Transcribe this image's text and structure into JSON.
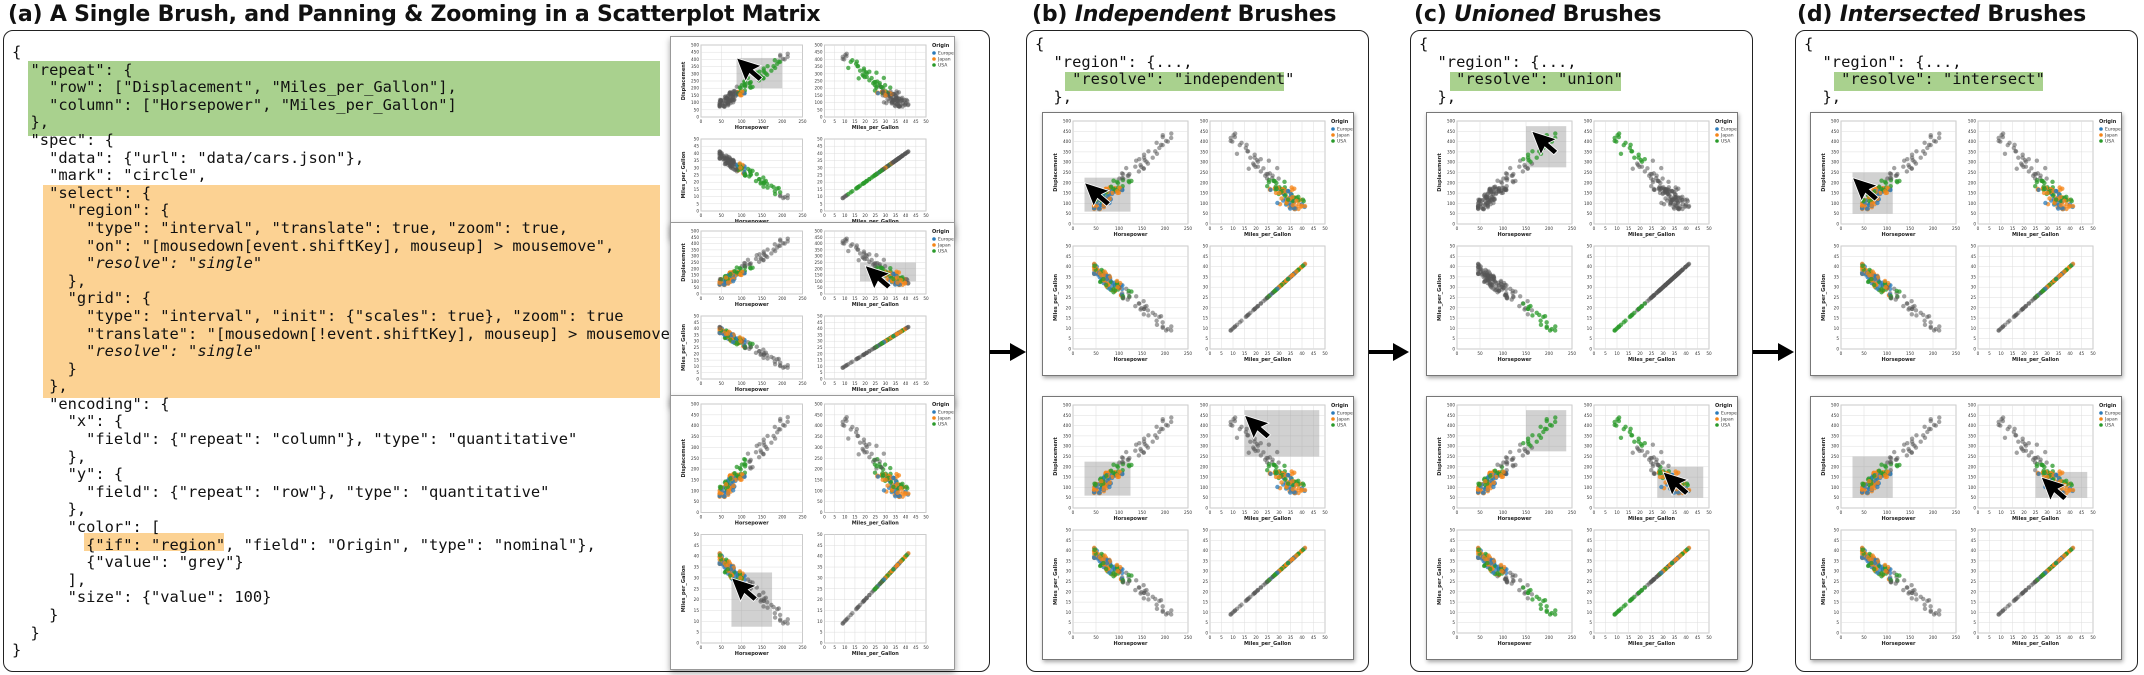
{
  "titles": {
    "a": "(a) A Single Brush, and Panning & Zooming in a Scatterplot Matrix",
    "b_prefix": "(b) ",
    "b_em": "Independent",
    "b_suffix": " Brushes",
    "c_prefix": "(c) ",
    "c_em": "Unioned",
    "c_suffix": " Brushes",
    "d_prefix": "(d) ",
    "d_em": "Intersected",
    "d_suffix": " Brushes"
  },
  "code_a": [
    "{",
    "  \"repeat\": {",
    "    \"row\": [\"Displacement\", \"Miles_per_Gallon\"],",
    "    \"column\": [\"Horsepower\", \"Miles_per_Gallon\"]",
    "  },",
    "  \"spec\": {",
    "    \"data\": {\"url\": \"data/cars.json\"},",
    "    \"mark\": \"circle\",",
    "    \"select\": {",
    "      \"region\": {",
    "        \"type\": \"interval\", \"translate\": true, \"zoom\": true,",
    "        \"on\": \"[mousedown[event.shiftKey], mouseup] > mousemove\",",
    "        \"resolve\": \"single\"",
    "      },",
    "      \"grid\": {",
    "        \"type\": \"interval\", \"init\": {\"scales\": true}, \"zoom\": true",
    "        \"translate\": \"[mousedown[!event.shiftKey], mouseup] > mousemove\",",
    "        \"resolve\": \"single\"",
    "      }",
    "    },",
    "    \"encoding\": {",
    "      \"x\": {",
    "        \"field\": {\"repeat\": \"column\"}, \"type\": \"quantitative\"",
    "      },",
    "      \"y\": {",
    "        \"field\": {\"repeat\": \"row\"}, \"type\": \"quantitative\"",
    "      },",
    "      \"color\": [",
    "        {\"if\": \"region\", \"field\": \"Origin\", \"type\": \"nominal\"},",
    "        {\"value\": \"grey\"}",
    "      ],",
    "      \"size\": {\"value\": 100}",
    "    }",
    "  }",
    "}"
  ],
  "code_b": [
    "{",
    "  \"region\": {...,",
    "    \"resolve\": \"independent\"",
    "  },"
  ],
  "code_c": [
    "{",
    "  \"region\": {...,",
    "    \"resolve\": \"union\"",
    "  },"
  ],
  "code_d": [
    "{",
    "  \"region\": {...,",
    "    \"resolve\": \"intersect\"",
    "  },"
  ],
  "chart_labels": {
    "horsepower": "Horsepower",
    "mpg": "Miles_per_Gallon",
    "displacement": "Displacement",
    "legend_title": "Origin",
    "legend_items": [
      "Europe",
      "Japan",
      "USA"
    ],
    "mpg_ticks": [
      "0",
      "5",
      "10",
      "15",
      "20",
      "25",
      "30",
      "35",
      "40",
      "45",
      "50"
    ],
    "hp_ticks": [
      "0",
      "50",
      "100",
      "150",
      "200",
      "250"
    ],
    "disp_ticks": [
      "0",
      "50",
      "100",
      "150",
      "200",
      "250",
      "300",
      "350",
      "400",
      "450",
      "500"
    ],
    "mpg_y_ticks": [
      "0",
      "5",
      "10",
      "15",
      "20",
      "25",
      "30",
      "35",
      "40",
      "45",
      "50"
    ]
  },
  "colors": {
    "europe": "#2b7bba",
    "japan": "#f58518",
    "usa": "#2a9a2a",
    "grey": "#555555",
    "green_highlight": "#a9d18e",
    "orange_highlight": "#fcd293"
  }
}
